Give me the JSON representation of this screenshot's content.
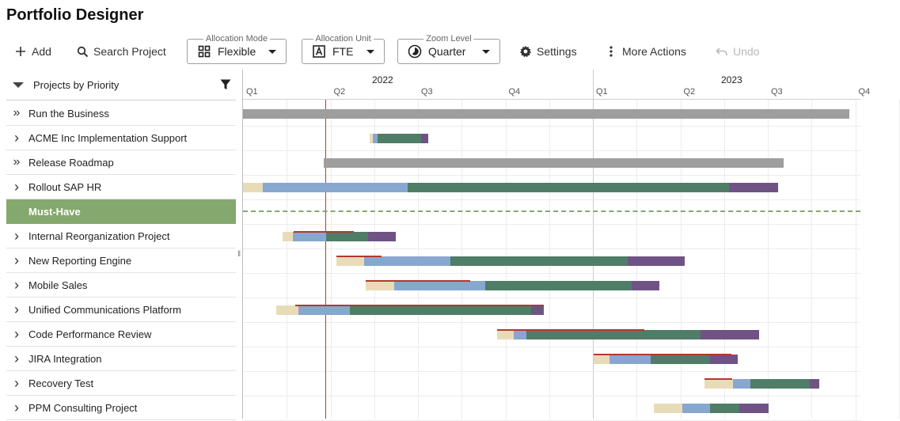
{
  "app": {
    "title": "Portfolio Designer"
  },
  "toolbar": {
    "add_label": "Add",
    "search_label": "Search Project",
    "allocation_mode": {
      "legend": "Allocation Mode",
      "value": "Flexible"
    },
    "allocation_unit": {
      "legend": "Allocation Unit",
      "value": "FTE"
    },
    "zoom_level": {
      "legend": "Zoom Level",
      "value": "Quarter"
    },
    "settings_label": "Settings",
    "more_actions_label": "More Actions",
    "undo_label": "Undo"
  },
  "grid": {
    "header_label": "Projects by Priority",
    "rows": [
      {
        "label": "Run the Business",
        "kind": "summary"
      },
      {
        "label": "ACME Inc Implementation Support",
        "kind": "project"
      },
      {
        "label": "Release Roadmap",
        "kind": "summary"
      },
      {
        "label": "Rollout SAP HR",
        "kind": "project"
      },
      {
        "label": "Must-Have",
        "kind": "group"
      },
      {
        "label": "Internal Reorganization Project",
        "kind": "project"
      },
      {
        "label": "New Reporting Engine",
        "kind": "project"
      },
      {
        "label": "Mobile Sales",
        "kind": "project"
      },
      {
        "label": "Unified Communications Platform",
        "kind": "project"
      },
      {
        "label": "Code Performance Review",
        "kind": "project"
      },
      {
        "label": "JIRA Integration",
        "kind": "project"
      },
      {
        "label": "Recovery Test",
        "kind": "project"
      },
      {
        "label": "PPM Consulting Project",
        "kind": "project"
      }
    ]
  },
  "timeline": {
    "years": [
      "2022",
      "2023"
    ],
    "quarters": [
      "Q1",
      "Q2",
      "Q3",
      "Q4",
      "Q1",
      "Q2",
      "Q3",
      "Q4"
    ],
    "phase_colors": {
      "initiation": "#e8dcb8",
      "planning": "#87a7cf",
      "execution": "#4f7d67",
      "closing": "#6f5384",
      "summary": "#9e9e9e",
      "baseline": "#b5382c",
      "group": "#84a86e"
    }
  }
}
